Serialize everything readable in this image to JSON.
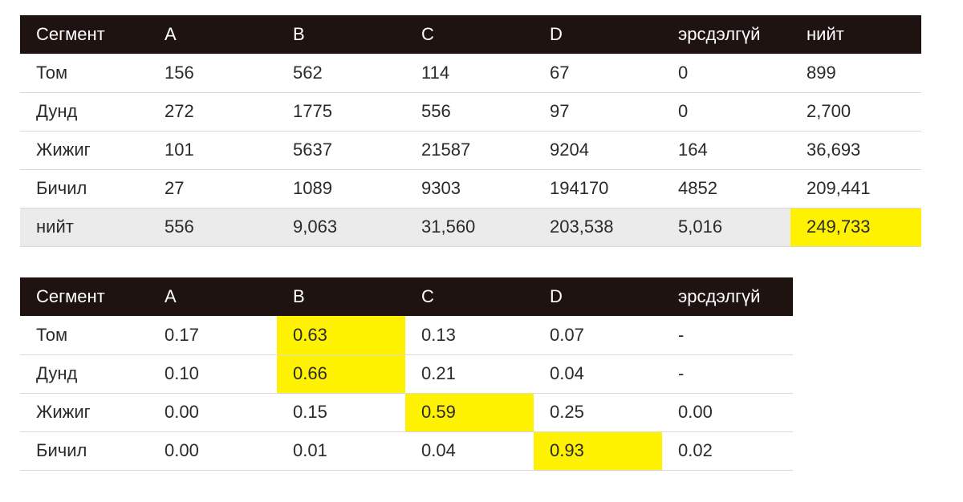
{
  "colors": {
    "header_bg": "#1f1311",
    "highlight": "#fff200",
    "total_row_bg": "#ebebeb"
  },
  "table1": {
    "headers": [
      "Сегмент",
      "A",
      "B",
      "C",
      "D",
      "эрсдэлгүй",
      "нийт"
    ],
    "rows": [
      [
        "Том",
        "156",
        "562",
        "114",
        "67",
        "0",
        "899"
      ],
      [
        "Дунд",
        "272",
        "1775",
        "556",
        "97",
        "0",
        "2,700"
      ],
      [
        "Жижиг",
        "101",
        "5637",
        "21587",
        "9204",
        "164",
        "36,693"
      ],
      [
        "Бичил",
        "27",
        "1089",
        "9303",
        "194170",
        "4852",
        "209,441"
      ],
      [
        "нийт",
        "556",
        "9,063",
        "31,560",
        "203,538",
        "5,016",
        "249,733"
      ]
    ]
  },
  "table2": {
    "headers": [
      "Сегмент",
      "A",
      "B",
      "C",
      "D",
      "эрсдэлгүй"
    ],
    "rows": [
      [
        "Том",
        "0.17",
        "0.63",
        "0.13",
        "0.07",
        "-"
      ],
      [
        "Дунд",
        "0.10",
        "0.66",
        "0.21",
        "0.04",
        "-"
      ],
      [
        "Жижиг",
        "0.00",
        "0.15",
        "0.59",
        "0.25",
        "0.00"
      ],
      [
        "Бичил",
        "0.00",
        "0.01",
        "0.04",
        "0.93",
        "0.02"
      ]
    ]
  }
}
